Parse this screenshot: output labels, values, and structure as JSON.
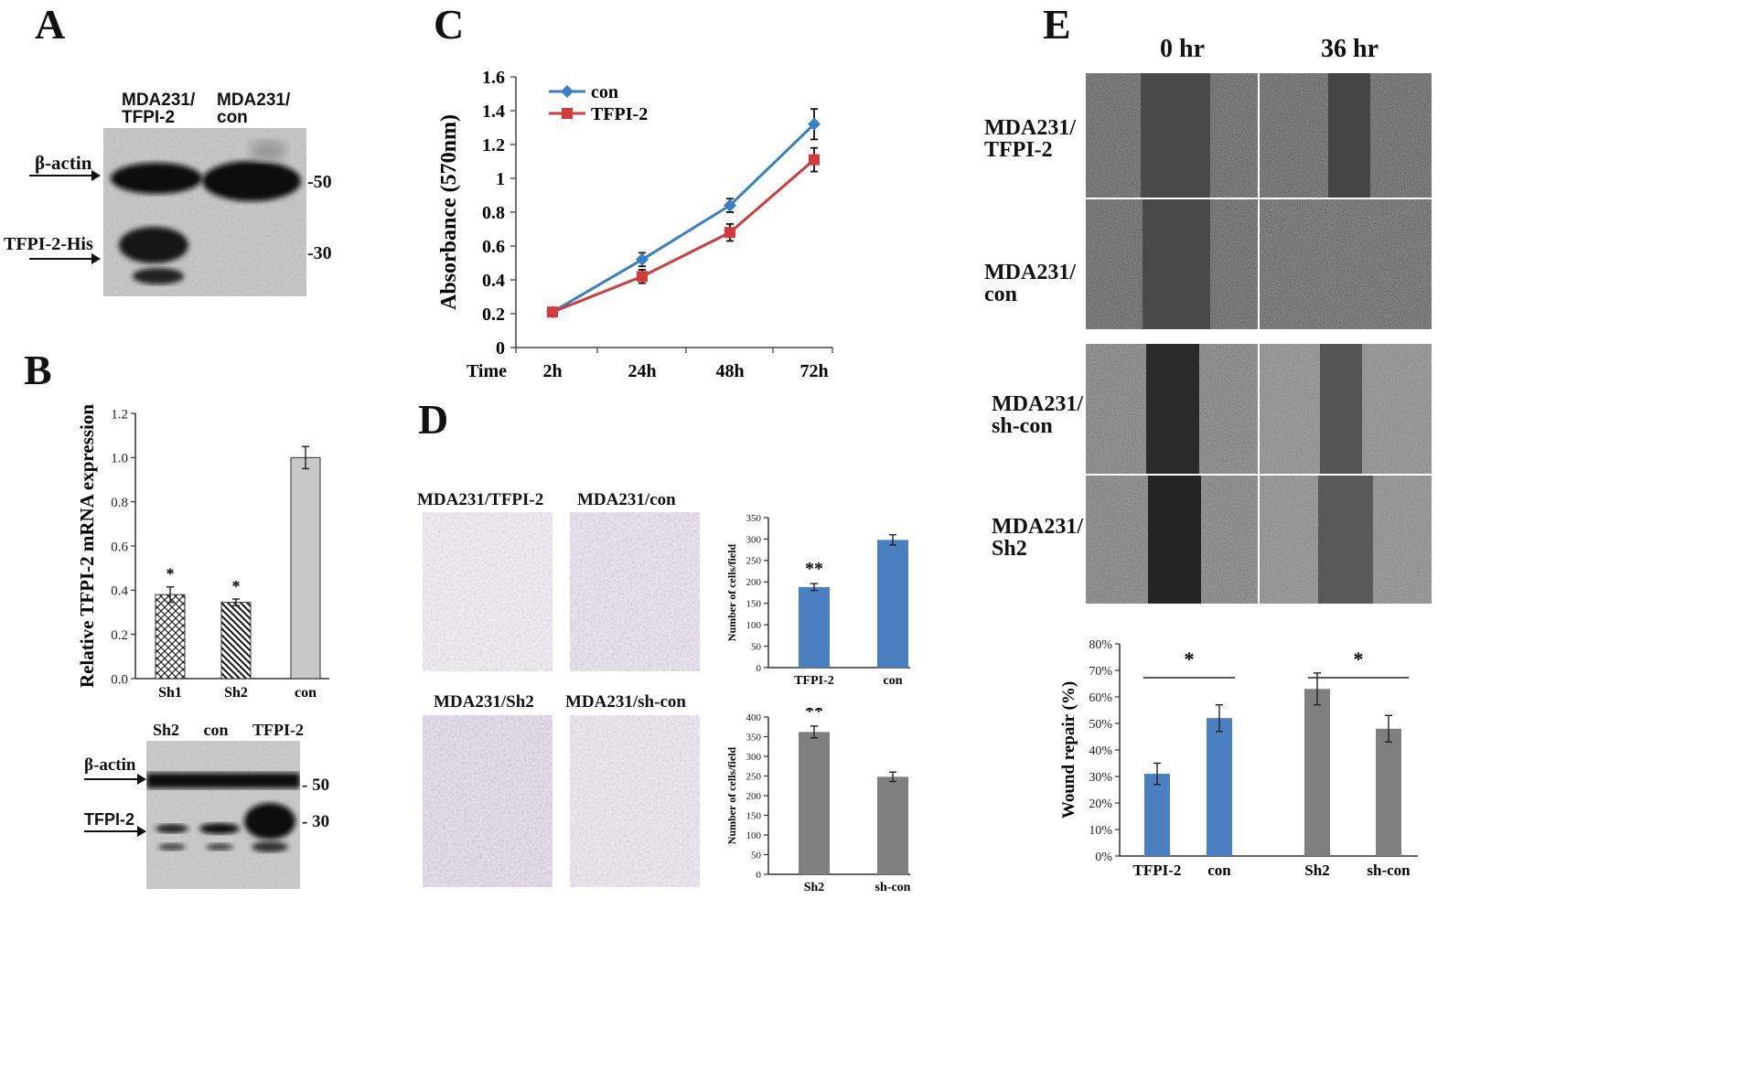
{
  "panels": {
    "A": {
      "letter": "A",
      "lane1": "MDA231/\nTFPI-2",
      "lane2": "MDA231/\ncon",
      "band1": "β-actin",
      "band2": "TFPI-2-His",
      "mw1": "-50",
      "mw2": "-30"
    },
    "B": {
      "letter": "B",
      "blot_lanes": [
        "Sh2",
        "con",
        "TFPI-2"
      ],
      "band1": "β-actin",
      "band2": "TFPI-2",
      "mw1": "- 50",
      "mw2": "- 30"
    },
    "C": {
      "letter": "C"
    },
    "D": {
      "letter": "D",
      "img_labels": [
        "MDA231/TFPI-2",
        "MDA231/con",
        "MDA231/Sh2",
        "MDA231/sh-con"
      ]
    },
    "E": {
      "letter": "E",
      "time_labels": [
        "0 hr",
        "36 hr"
      ],
      "row_labels": [
        "MDA231/\nTFPI-2",
        "MDA231/\ncon",
        "MDA231/\nsh-con",
        "MDA231/\nSh2"
      ]
    }
  },
  "chart_data": [
    {
      "id": "B",
      "type": "bar",
      "ylabel": "Relative TFPI-2 mRNA expression",
      "categories": [
        "Sh1",
        "Sh2",
        "con"
      ],
      "values": [
        0.38,
        0.345,
        1.0
      ],
      "errors": [
        0.035,
        0.015,
        0.05
      ],
      "significance": [
        "*",
        "*",
        ""
      ],
      "ylim": [
        0,
        1.2
      ],
      "yticks": [
        "0.0",
        "0.2",
        "0.4",
        "0.6",
        "0.8",
        "1.0",
        "1.2"
      ],
      "fills": [
        "crosshatch",
        "diagonal",
        "#c8c8c8"
      ]
    },
    {
      "id": "C",
      "type": "line",
      "ylabel": "Absorbance (570nm)",
      "xlabel": "Time",
      "categories": [
        "2h",
        "24h",
        "48h",
        "72h"
      ],
      "ylim": [
        0,
        1.6
      ],
      "yticks": [
        "0",
        "0.2",
        "0.4",
        "0.6",
        "0.8",
        "1",
        "1.2",
        "1.4",
        "1.6"
      ],
      "series": [
        {
          "name": "con",
          "color": "#3a7fc4",
          "marker": "diamond",
          "values": [
            0.21,
            0.52,
            0.84,
            1.32
          ],
          "errors": [
            0.02,
            0.04,
            0.04,
            0.09
          ]
        },
        {
          "name": "TFPI-2",
          "color": "#d23b3b",
          "marker": "square",
          "values": [
            0.21,
            0.42,
            0.68,
            1.11
          ],
          "errors": [
            0.02,
            0.04,
            0.05,
            0.07
          ]
        }
      ],
      "legend": "top-left"
    },
    {
      "id": "D1",
      "type": "bar",
      "ylabel": "Number of cells/field",
      "categories": [
        "TFPI-2",
        "con"
      ],
      "values": [
        188,
        298
      ],
      "errors": [
        8,
        12
      ],
      "significance": [
        "**",
        ""
      ],
      "ylim": [
        0,
        350
      ],
      "yticks": [
        "0",
        "50",
        "100",
        "150",
        "200",
        "250",
        "300",
        "350"
      ],
      "color": "#4a7fc1"
    },
    {
      "id": "D2",
      "type": "bar",
      "ylabel": "Number of cells/field",
      "categories": [
        "Sh2",
        "sh-con"
      ],
      "values": [
        362,
        248
      ],
      "errors": [
        15,
        12
      ],
      "significance": [
        "**",
        ""
      ],
      "ylim": [
        0,
        400
      ],
      "yticks": [
        "0",
        "50",
        "100",
        "150",
        "200",
        "250",
        "300",
        "350",
        "400"
      ],
      "color": "#7f7f7f"
    },
    {
      "id": "E",
      "type": "bar",
      "ylabel": "Wound repair (%)",
      "categories": [
        "TFPI-2",
        "con",
        "Sh2",
        "sh-con"
      ],
      "values": [
        31,
        52,
        63,
        48
      ],
      "errors": [
        4,
        5,
        6,
        5
      ],
      "colors": [
        "#4a7fc1",
        "#4a7fc1",
        "#7f7f7f",
        "#7f7f7f"
      ],
      "ylim": [
        0,
        80
      ],
      "yticks": [
        "0%",
        "10%",
        "20%",
        "30%",
        "40%",
        "50%",
        "60%",
        "70%",
        "80%"
      ],
      "significance": [
        "*",
        "*"
      ]
    }
  ]
}
